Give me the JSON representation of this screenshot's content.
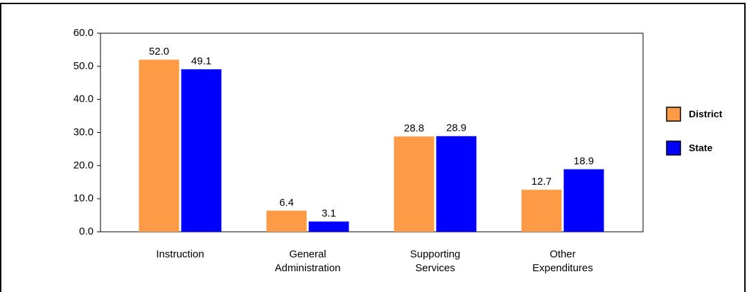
{
  "chart_data": {
    "type": "bar",
    "categories": [
      "Instruction",
      "General Administration",
      "Supporting Services",
      "Other Expenditures"
    ],
    "series": [
      {
        "name": "District",
        "color": "#ff9a46",
        "values": [
          52.0,
          6.4,
          28.8,
          12.7
        ],
        "value_labels": [
          "52.0",
          "6.4",
          "28.8",
          "12.7"
        ]
      },
      {
        "name": "State",
        "color": "#0000ff",
        "values": [
          49.1,
          3.1,
          28.9,
          18.9
        ],
        "value_labels": [
          "49.1",
          "3.1",
          "28.9",
          "18.9"
        ]
      }
    ],
    "ylim": [
      0,
      60
    ],
    "yticks": [
      {
        "value": 0,
        "label": "0.0"
      },
      {
        "value": 10,
        "label": "10.0"
      },
      {
        "value": 20,
        "label": "20.0"
      },
      {
        "value": 30,
        "label": "30.0"
      },
      {
        "value": 40,
        "label": "40.0"
      },
      {
        "value": 50,
        "label": "50.0"
      },
      {
        "value": 60,
        "label": "60.0"
      }
    ],
    "legend": "right"
  }
}
